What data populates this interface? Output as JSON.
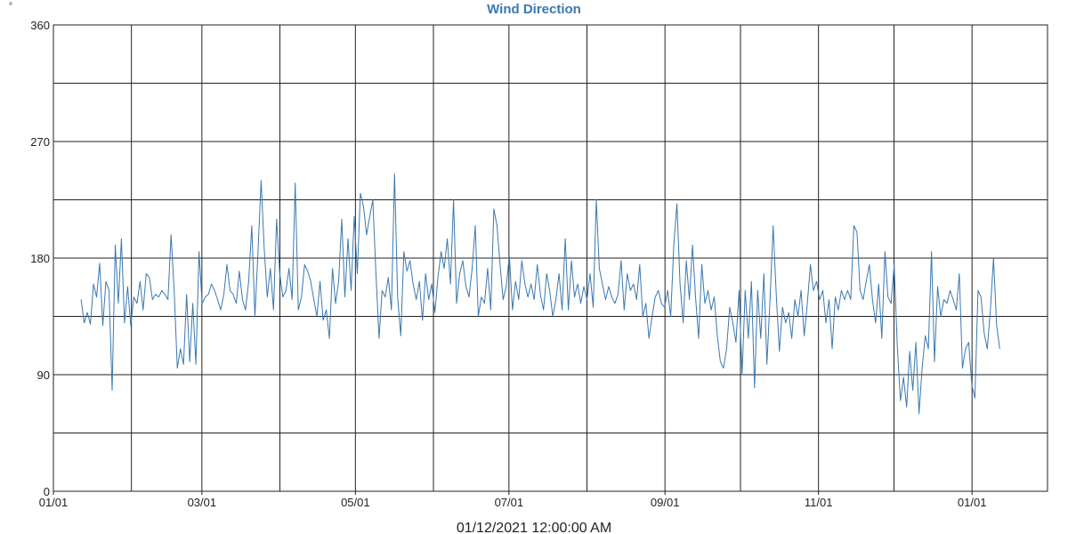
{
  "chart_data": {
    "type": "line",
    "title": "Wind Direction",
    "ylabel": "°",
    "xlabel": "01/12/2021 12:00:00 AM",
    "ylim": [
      0,
      360
    ],
    "y_ticks": [
      0,
      90,
      180,
      270,
      360
    ],
    "x_tick_labels": [
      "01/01",
      "03/01",
      "05/01",
      "07/01",
      "09/01",
      "11/01",
      "01/01"
    ],
    "grid": true,
    "color": "#3a78b0",
    "series": [
      {
        "x_start": "2021-01-12",
        "x_end": "2022-01-12",
        "values": [
          148,
          130,
          138,
          129,
          160,
          150,
          176,
          128,
          162,
          155,
          78,
          190,
          145,
          195,
          130,
          158,
          128,
          150,
          145,
          162,
          140,
          168,
          165,
          148,
          152,
          150,
          155,
          152,
          148,
          198,
          155,
          95,
          110,
          98,
          152,
          100,
          145,
          98,
          185,
          145,
          150,
          152,
          160,
          155,
          148,
          140,
          152,
          175,
          155,
          152,
          145,
          170,
          148,
          140,
          162,
          205,
          135,
          185,
          240,
          188,
          150,
          172,
          140,
          210,
          168,
          150,
          155,
          172,
          148,
          238,
          140,
          150,
          175,
          170,
          162,
          148,
          135,
          162,
          132,
          140,
          118,
          172,
          145,
          162,
          210,
          150,
          195,
          155,
          212,
          168,
          230,
          220,
          198,
          212,
          225,
          168,
          118,
          155,
          150,
          165,
          140,
          245,
          150,
          120,
          185,
          170,
          178,
          160,
          148,
          162,
          132,
          168,
          148,
          160,
          138,
          165,
          185,
          172,
          195,
          160,
          225,
          145,
          168,
          178,
          158,
          150,
          172,
          205,
          135,
          150,
          145,
          172,
          140,
          218,
          205,
          175,
          148,
          158,
          182,
          140,
          162,
          148,
          178,
          160,
          150,
          160,
          148,
          175,
          152,
          140,
          168,
          155,
          135,
          148,
          168,
          140,
          195,
          140,
          178,
          150,
          160,
          145,
          158,
          148,
          168,
          142,
          225,
          172,
          160,
          148,
          158,
          150,
          145,
          152,
          178,
          140,
          168,
          155,
          160,
          148,
          175,
          135,
          145,
          118,
          135,
          150,
          155,
          145,
          142,
          155,
          135,
          190,
          222,
          160,
          130,
          178,
          148,
          190,
          150,
          118,
          175,
          145,
          155,
          140,
          150,
          120,
          100,
          95,
          110,
          142,
          130,
          115,
          155,
          90,
          155,
          118,
          162,
          80,
          155,
          118,
          168,
          98,
          148,
          205,
          152,
          108,
          142,
          130,
          138,
          118,
          148,
          135,
          155,
          120,
          145,
          175,
          155,
          162,
          148,
          155,
          130,
          148,
          110,
          150,
          140,
          155,
          148,
          155,
          148,
          205,
          200,
          155,
          148,
          162,
          175,
          148,
          130,
          160,
          118,
          185,
          150,
          145,
          175,
          112,
          70,
          88,
          65,
          108,
          78,
          115,
          60,
          95,
          120,
          110,
          185,
          100,
          158,
          135,
          148,
          145,
          155,
          148,
          140,
          168,
          95,
          110,
          115,
          82,
          72,
          155,
          150,
          122,
          110,
          140,
          180,
          128,
          110
        ]
      }
    ]
  }
}
